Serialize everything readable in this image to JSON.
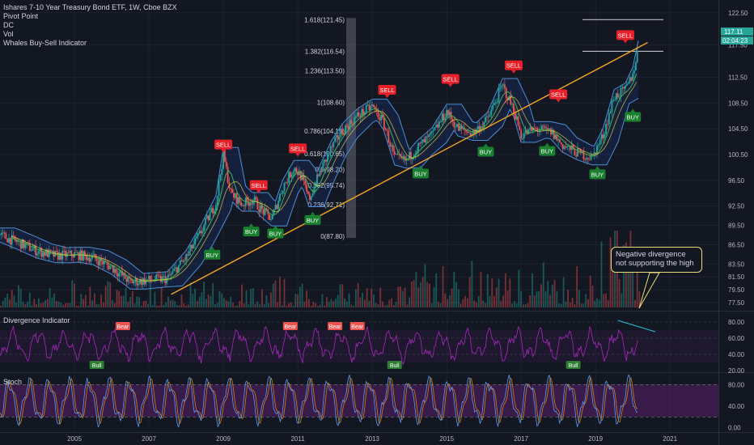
{
  "legend": {
    "title": "Ishares 7-10 Year Treasury Bond ETF, 1W, Cboe BZX",
    "indicators": [
      "Pivot Point",
      "DC",
      "Vol",
      "Whales Buy-Sell Indicator"
    ]
  },
  "price_badges": {
    "last": "117.11",
    "countdown": "02:04:23"
  },
  "annotation": "Negative divergence not supporting the high",
  "panes": {
    "divergence": "Divergence Indicator",
    "stoch": "Stoch"
  },
  "colors": {
    "background": "#131722",
    "up": "#26a69a",
    "down": "#ef5350",
    "sell": "#e8202a",
    "buy": "#1a7f2e",
    "trendline": "#f5a623",
    "channel": "#4a8fd6",
    "oscillator": "#9c27b0",
    "callout_border": "#e8dc7a"
  },
  "chart_data": [
    {
      "type": "line",
      "name": "price",
      "x_ticks": [
        "2005",
        "2007",
        "2009",
        "2011",
        "2013",
        "2015",
        "2017",
        "2019",
        "2021"
      ],
      "y_ticks": [
        "122.50",
        "117.50",
        "112.50",
        "108.50",
        "104.50",
        "100.50",
        "96.50",
        "92.50",
        "89.50",
        "86.50",
        "83.50",
        "81.50",
        "79.50",
        "77.50"
      ],
      "ylim": [
        76.5,
        124
      ],
      "x_range": [
        2003.0,
        2022.3
      ],
      "price_path": [
        [
          2003.0,
          88.0
        ],
        [
          2003.5,
          86.8
        ],
        [
          2004.0,
          85.5
        ],
        [
          2004.5,
          84.8
        ],
        [
          2005.0,
          85.0
        ],
        [
          2005.5,
          84.5
        ],
        [
          2006.0,
          83.0
        ],
        [
          2006.5,
          80.7
        ],
        [
          2007.0,
          81.0
        ],
        [
          2007.5,
          81.2
        ],
        [
          2008.0,
          84.5
        ],
        [
          2008.4,
          88.5
        ],
        [
          2008.8,
          93.0
        ],
        [
          2009.0,
          100.5
        ],
        [
          2009.2,
          94.5
        ],
        [
          2009.5,
          92.8
        ],
        [
          2009.8,
          93.5
        ],
        [
          2010.0,
          92.0
        ],
        [
          2010.3,
          90.5
        ],
        [
          2010.6,
          95.5
        ],
        [
          2010.9,
          98.5
        ],
        [
          2011.1,
          97.0
        ],
        [
          2011.3,
          93.5
        ],
        [
          2011.6,
          97.8
        ],
        [
          2011.9,
          101.5
        ],
        [
          2012.2,
          104.2
        ],
        [
          2012.6,
          106.5
        ],
        [
          2013.0,
          108.0
        ],
        [
          2013.3,
          105.5
        ],
        [
          2013.6,
          100.0
        ],
        [
          2013.9,
          99.5
        ],
        [
          2014.2,
          101.5
        ],
        [
          2014.6,
          103.5
        ],
        [
          2015.0,
          107.2
        ],
        [
          2015.3,
          104.5
        ],
        [
          2015.7,
          103.8
        ],
        [
          2016.1,
          106.0
        ],
        [
          2016.5,
          111.2
        ],
        [
          2016.8,
          107.5
        ],
        [
          2017.0,
          103.5
        ],
        [
          2017.4,
          104.5
        ],
        [
          2017.8,
          104.0
        ],
        [
          2018.1,
          102.0
        ],
        [
          2018.5,
          100.8
        ],
        [
          2018.9,
          100.0
        ],
        [
          2019.2,
          103.5
        ],
        [
          2019.5,
          109.5
        ],
        [
          2019.8,
          110.5
        ],
        [
          2020.0,
          113.0
        ],
        [
          2020.15,
          117.11
        ]
      ],
      "pivots": [
        {
          "label": "1.618(121.45)",
          "value": 121.45
        },
        {
          "label": "1.382(116.54)",
          "value": 116.54
        },
        {
          "label": "1.236(113.50)",
          "value": 113.5
        },
        {
          "label": "1(108.60)",
          "value": 108.6
        },
        {
          "label": "0.786(104.15)",
          "value": 104.15
        },
        {
          "label": "0.618(100.65)",
          "value": 100.65
        },
        {
          "label": "0.5(98.20)",
          "value": 98.2
        },
        {
          "label": "0.382(95.74)",
          "value": 95.74
        },
        {
          "label": "0.236(92.71)",
          "value": 92.71
        },
        {
          "label": "0(87.80)",
          "value": 87.8
        }
      ],
      "signals": [
        {
          "label": "SELL",
          "x": 2009.0,
          "y": 100.8
        },
        {
          "label": "SELL",
          "x": 2009.95,
          "y": 94.5
        },
        {
          "label": "SELL",
          "x": 2011.0,
          "y": 100.2
        },
        {
          "label": "SELL",
          "x": 2013.4,
          "y": 109.3
        },
        {
          "label": "SELL",
          "x": 2015.1,
          "y": 111.0
        },
        {
          "label": "SELL",
          "x": 2016.8,
          "y": 113.1
        },
        {
          "label": "SELL",
          "x": 2018.0,
          "y": 108.6
        },
        {
          "label": "SELL",
          "x": 2019.8,
          "y": 117.8
        },
        {
          "label": "BUY",
          "x": 2008.7,
          "y": 86.2
        },
        {
          "label": "BUY",
          "x": 2009.75,
          "y": 89.8
        },
        {
          "label": "BUY",
          "x": 2010.4,
          "y": 89.5
        },
        {
          "label": "BUY",
          "x": 2011.4,
          "y": 91.6
        },
        {
          "label": "BUY",
          "x": 2014.3,
          "y": 98.8
        },
        {
          "label": "BUY",
          "x": 2016.05,
          "y": 102.2
        },
        {
          "label": "BUY",
          "x": 2017.7,
          "y": 102.3
        },
        {
          "label": "BUY",
          "x": 2019.05,
          "y": 98.7
        },
        {
          "label": "BUY",
          "x": 2020.0,
          "y": 107.6
        }
      ],
      "trendline": [
        [
          2007.6,
          78.8
        ],
        [
          2020.4,
          117.9
        ]
      ]
    },
    {
      "type": "line",
      "name": "Divergence Indicator",
      "y_ticks": [
        "80.00",
        "60.00",
        "40.00",
        "20.00"
      ],
      "ylim": [
        20,
        90
      ],
      "markers": [
        {
          "label": "Bear",
          "x": 2006.3
        },
        {
          "label": "Bear",
          "x": 2010.8
        },
        {
          "label": "Bear",
          "x": 2012.0
        },
        {
          "label": "Bear",
          "x": 2012.6
        },
        {
          "label": "Bull",
          "x": 2005.6
        },
        {
          "label": "Bull",
          "x": 2013.6
        },
        {
          "label": "Bull",
          "x": 2018.4
        }
      ],
      "divergence_line": [
        [
          2019.6,
          82
        ],
        [
          2020.6,
          68
        ]
      ]
    },
    {
      "type": "line",
      "name": "Stoch",
      "y_ticks": [
        "80.00",
        "40.00",
        "0.00"
      ],
      "ylim": [
        -5,
        100
      ],
      "band": [
        20,
        80
      ]
    }
  ]
}
